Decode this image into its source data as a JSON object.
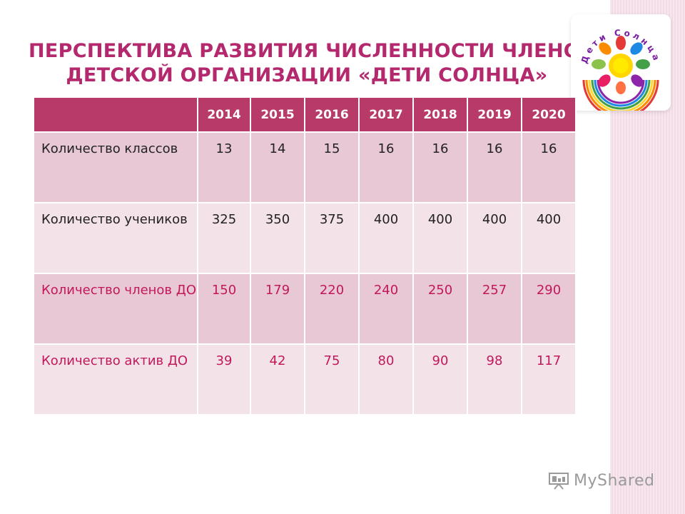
{
  "title": {
    "line1": "ПЕРСПЕКТИВА РАЗВИТИЯ ЧИСЛЕННОСТИ ЧЛЕНОВ",
    "line2": "ДЕТСКОЙ ОРГАНИЗАЦИИ  «ДЕТИ СОЛНЦА»"
  },
  "logo": {
    "text": "Дети Солнца"
  },
  "table": {
    "header_label": "",
    "years": [
      "2014",
      "2015",
      "2016",
      "2017",
      "2018",
      "2019",
      "2020"
    ],
    "rows": [
      {
        "label": "Количество классов",
        "values": [
          "13",
          "14",
          "15",
          "16",
          "16",
          "16",
          "16"
        ]
      },
      {
        "label": "Количество учеников",
        "values": [
          "325",
          "350",
          "375",
          "400",
          "400",
          "400",
          "400"
        ]
      },
      {
        "label": "Количество членов ДО",
        "values": [
          "150",
          "179",
          "220",
          "240",
          "250",
          "257",
          "290"
        ]
      },
      {
        "label": "Количество актив ДО",
        "values": [
          "39",
          "42",
          "75",
          "80",
          "90",
          "98",
          "117"
        ]
      }
    ]
  },
  "watermark": {
    "text": "MyShared"
  },
  "colors": {
    "accent": "#b4286e",
    "header_bg": "#b73a68",
    "row_dark": "#e8c8d4",
    "row_light": "#f3e3e9",
    "highlight_text": "#c2185b"
  }
}
